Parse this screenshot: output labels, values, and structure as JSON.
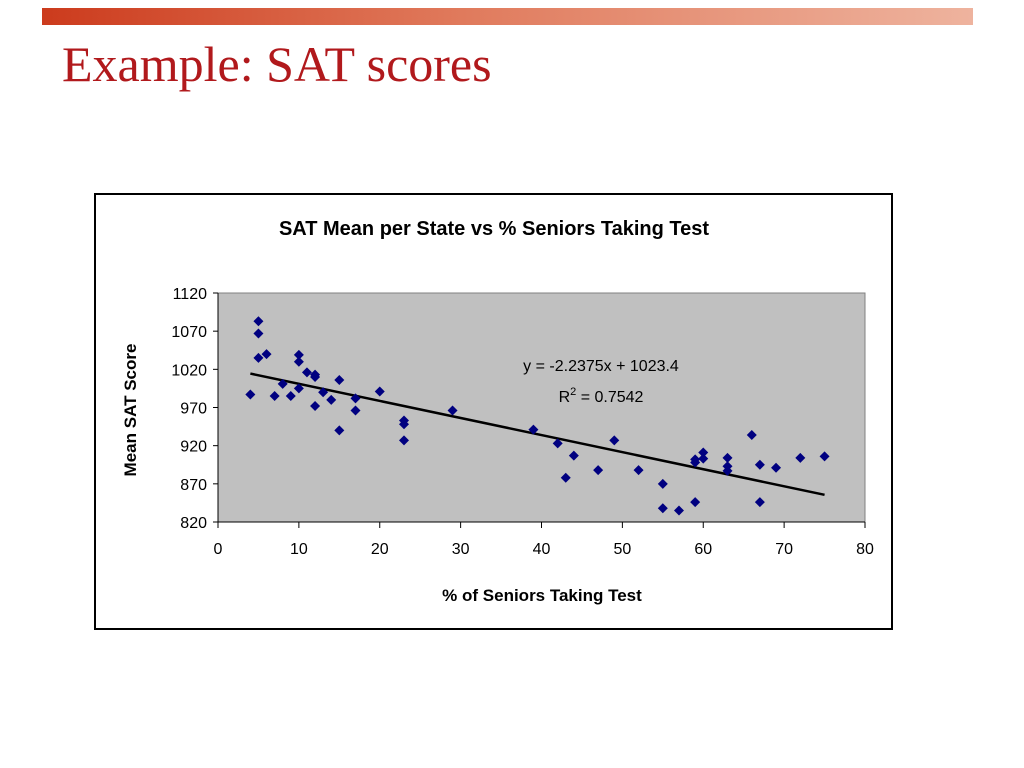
{
  "slide": {
    "title": "Example: SAT scores",
    "colors": {
      "accent_bar": "#cc3b1d",
      "title": "#b1191c"
    }
  },
  "chart_data": {
    "type": "scatter",
    "title": "SAT Mean per State vs % Seniors Taking Test",
    "xlabel": "% of Seniors Taking Test",
    "ylabel": "Mean SAT Score",
    "xlim": [
      0,
      80
    ],
    "ylim": [
      820,
      1120
    ],
    "xticks": [
      0,
      10,
      20,
      30,
      40,
      50,
      60,
      70,
      80
    ],
    "yticks": [
      820,
      870,
      920,
      970,
      1020,
      1070,
      1120
    ],
    "grid": false,
    "legend": "none",
    "plot_background": "#c0c0c0",
    "marker_color": "#000080",
    "trendline": {
      "slope": -2.2375,
      "intercept": 1023.4,
      "x_range": [
        4,
        75
      ],
      "equation": "y = -2.2375x + 1023.4",
      "r2_prefix": "R",
      "r2_sup": "2",
      "r2_suffix": " = 0.7542"
    },
    "points": [
      [
        4,
        987
      ],
      [
        5,
        1083
      ],
      [
        5,
        1067
      ],
      [
        5,
        1035
      ],
      [
        6,
        1040
      ],
      [
        7,
        985
      ],
      [
        8,
        1001
      ],
      [
        9,
        985
      ],
      [
        10,
        1039
      ],
      [
        10,
        1030
      ],
      [
        10,
        995
      ],
      [
        11,
        1016
      ],
      [
        12,
        1013
      ],
      [
        12,
        1010
      ],
      [
        12,
        972
      ],
      [
        13,
        990
      ],
      [
        14,
        980
      ],
      [
        15,
        1006
      ],
      [
        15,
        940
      ],
      [
        17,
        982
      ],
      [
        17,
        966
      ],
      [
        20,
        991
      ],
      [
        23,
        953
      ],
      [
        23,
        948
      ],
      [
        23,
        927
      ],
      [
        29,
        966
      ],
      [
        39,
        941
      ],
      [
        42,
        923
      ],
      [
        43,
        878
      ],
      [
        44,
        907
      ],
      [
        47,
        888
      ],
      [
        49,
        927
      ],
      [
        52,
        888
      ],
      [
        55,
        870
      ],
      [
        55,
        838
      ],
      [
        57,
        835
      ],
      [
        59,
        902
      ],
      [
        59,
        898
      ],
      [
        59,
        846
      ],
      [
        60,
        911
      ],
      [
        60,
        903
      ],
      [
        63,
        904
      ],
      [
        63,
        893
      ],
      [
        63,
        887
      ],
      [
        66,
        934
      ],
      [
        67,
        895
      ],
      [
        67,
        846
      ],
      [
        69,
        891
      ],
      [
        72,
        904
      ],
      [
        75,
        906
      ]
    ]
  }
}
